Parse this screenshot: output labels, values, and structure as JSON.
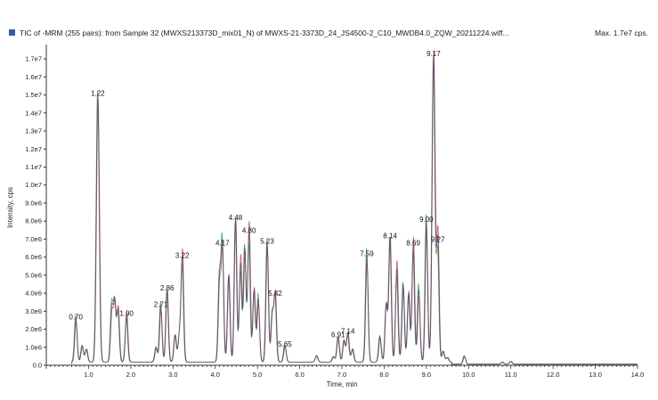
{
  "header": {
    "title": "TIC of -MRM (255 pairs): from Sample 32 (MWXS213373D_mix01_N) of MWXS-21-3373D_24_JS4500-2_C10_MWDB4.0_ZQW_20211224.wiff...",
    "max_label": "Max. 1.7e7 cps."
  },
  "colors": {
    "trace_primary": "#4a4a88",
    "trace_secondary": "#d04040",
    "trace_tertiary": "#3aa03a",
    "axis": "#333333",
    "marker": "#3a57a7"
  },
  "chart_data": {
    "type": "line",
    "xlabel": "Time, min",
    "ylabel": "Intensity, cps",
    "xlim": [
      0,
      14.0
    ],
    "ylim": [
      0,
      17500000
    ],
    "x_ticks": [
      "1.0",
      "2.0",
      "3.0",
      "4.0",
      "5.0",
      "6.0",
      "7.0",
      "8.0",
      "9.0",
      "10.0",
      "11.0",
      "12.0",
      "13.0",
      "14.0"
    ],
    "x_tick_values": [
      1,
      2,
      3,
      4,
      5,
      6,
      7,
      8,
      9,
      10,
      11,
      12,
      13,
      14
    ],
    "y_ticks": [
      "0.0",
      "1.0e6",
      "2.0e6",
      "3.0e6",
      "4.0e6",
      "5.0e6",
      "6.0e6",
      "7.0e6",
      "8.0e6",
      "9.0e6",
      "1.0e7",
      "1.1e7",
      "1.2e7",
      "1.3e7",
      "1.4e7",
      "1.5e7",
      "1.6e7",
      "1.7e7"
    ],
    "y_tick_values": [
      0,
      1000000,
      2000000,
      3000000,
      4000000,
      5000000,
      6000000,
      7000000,
      8000000,
      9000000,
      10000000,
      11000000,
      12000000,
      13000000,
      14000000,
      15000000,
      16000000,
      17000000
    ],
    "peaks": [
      {
        "x": 0.7,
        "label": "0.70",
        "y": 2400000
      },
      {
        "x": 1.22,
        "label": "1.22",
        "y": 14800000
      },
      {
        "x": 1.9,
        "label": "1.90",
        "y": 2600000
      },
      {
        "x": 2.71,
        "label": "2.71",
        "y": 3100000
      },
      {
        "x": 2.86,
        "label": "2.86",
        "y": 4000000
      },
      {
        "x": 3.22,
        "label": "3.22",
        "y": 5800000
      },
      {
        "x": 4.17,
        "label": "4.17",
        "y": 6500000
      },
      {
        "x": 4.48,
        "label": "4.48",
        "y": 7900000
      },
      {
        "x": 4.8,
        "label": "4.80",
        "y": 7200000
      },
      {
        "x": 5.23,
        "label": "5.23",
        "y": 6600000
      },
      {
        "x": 5.42,
        "label": "5.42",
        "y": 3700000
      },
      {
        "x": 5.65,
        "label": "5.65",
        "y": 900000
      },
      {
        "x": 6.91,
        "label": "6.91",
        "y": 1400000
      },
      {
        "x": 7.14,
        "label": "7.14",
        "y": 1600000
      },
      {
        "x": 7.59,
        "label": "7.59",
        "y": 5900000
      },
      {
        "x": 8.14,
        "label": "8.14",
        "y": 6900000
      },
      {
        "x": 8.69,
        "label": "8.69",
        "y": 6500000
      },
      {
        "x": 9.0,
        "label": "9.00",
        "y": 7800000
      },
      {
        "x": 9.17,
        "label": "9.17",
        "y": 17000000
      },
      {
        "x": 9.27,
        "label": "9.27",
        "y": 6700000
      }
    ],
    "unlabeled_peaks": [
      {
        "x": 0.85,
        "y": 900000
      },
      {
        "x": 0.95,
        "y": 700000
      },
      {
        "x": 1.55,
        "y": 3000000
      },
      {
        "x": 1.62,
        "y": 3300000
      },
      {
        "x": 1.7,
        "y": 2900000
      },
      {
        "x": 2.6,
        "y": 800000
      },
      {
        "x": 3.05,
        "y": 1500000
      },
      {
        "x": 3.15,
        "y": 1400000
      },
      {
        "x": 4.1,
        "y": 4500000
      },
      {
        "x": 4.32,
        "y": 4800000
      },
      {
        "x": 4.6,
        "y": 5500000
      },
      {
        "x": 4.7,
        "y": 6300000
      },
      {
        "x": 4.92,
        "y": 4000000
      },
      {
        "x": 5.02,
        "y": 3500000
      },
      {
        "x": 5.35,
        "y": 2600000
      },
      {
        "x": 6.4,
        "y": 350000
      },
      {
        "x": 6.8,
        "y": 300000
      },
      {
        "x": 7.05,
        "y": 1200000
      },
      {
        "x": 7.25,
        "y": 700000
      },
      {
        "x": 7.9,
        "y": 1400000
      },
      {
        "x": 8.05,
        "y": 3200000
      },
      {
        "x": 8.3,
        "y": 5200000
      },
      {
        "x": 8.45,
        "y": 4300000
      },
      {
        "x": 8.58,
        "y": 3800000
      },
      {
        "x": 8.82,
        "y": 4000000
      },
      {
        "x": 9.4,
        "y": 600000
      },
      {
        "x": 9.5,
        "y": 250000
      },
      {
        "x": 9.9,
        "y": 450000
      },
      {
        "x": 10.8,
        "y": 120000
      },
      {
        "x": 11.0,
        "y": 150000
      }
    ]
  }
}
